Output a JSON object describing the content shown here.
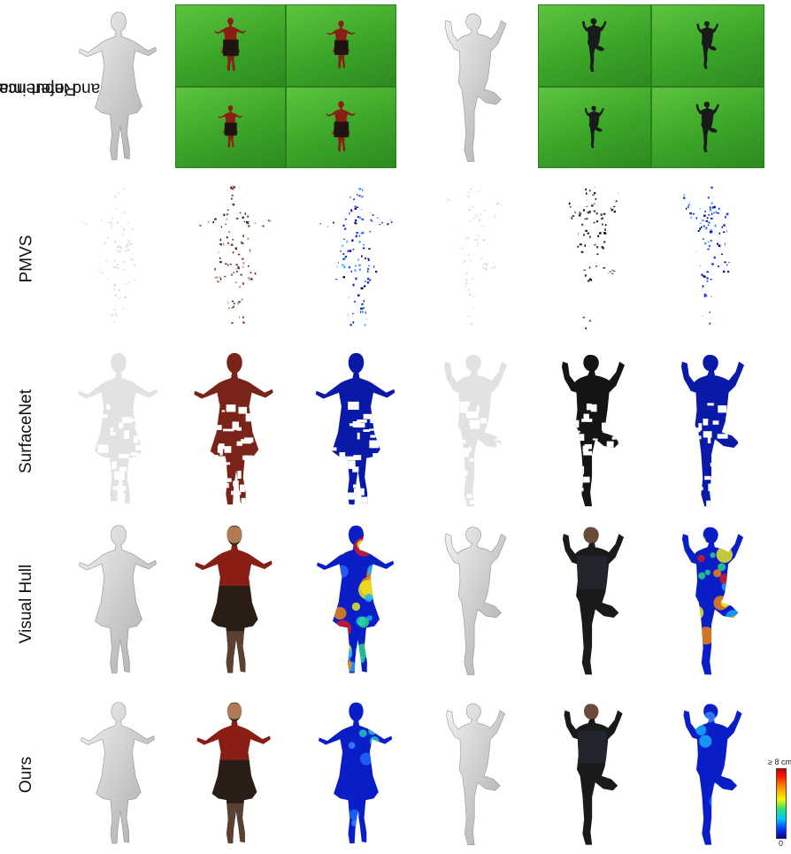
{
  "figure": {
    "rows": [
      {
        "id": "reference",
        "label_line1": "Reference scan",
        "label_line2": "and input images"
      },
      {
        "id": "pmvs",
        "label_line1": "PMVS",
        "label_line2": ""
      },
      {
        "id": "surfacenet",
        "label_line1": "SurfaceNet",
        "label_line2": ""
      },
      {
        "id": "visual_hull",
        "label_line1": "Visual Hull",
        "label_line2": ""
      },
      {
        "id": "ours",
        "label_line1": "Ours",
        "label_line2": ""
      }
    ],
    "colorbar": {
      "max_label": "≥ 8 cm",
      "min_label": "0"
    },
    "colors": {
      "background": "#ffffff",
      "green_screen": "#3fa82c",
      "mesh_gray": "#d6d6d6",
      "error_low": "#0a1ec8",
      "error_high": "#d01010",
      "texture_shirt": "#8a1e14",
      "texture_dark": "#1a1a1a"
    }
  }
}
